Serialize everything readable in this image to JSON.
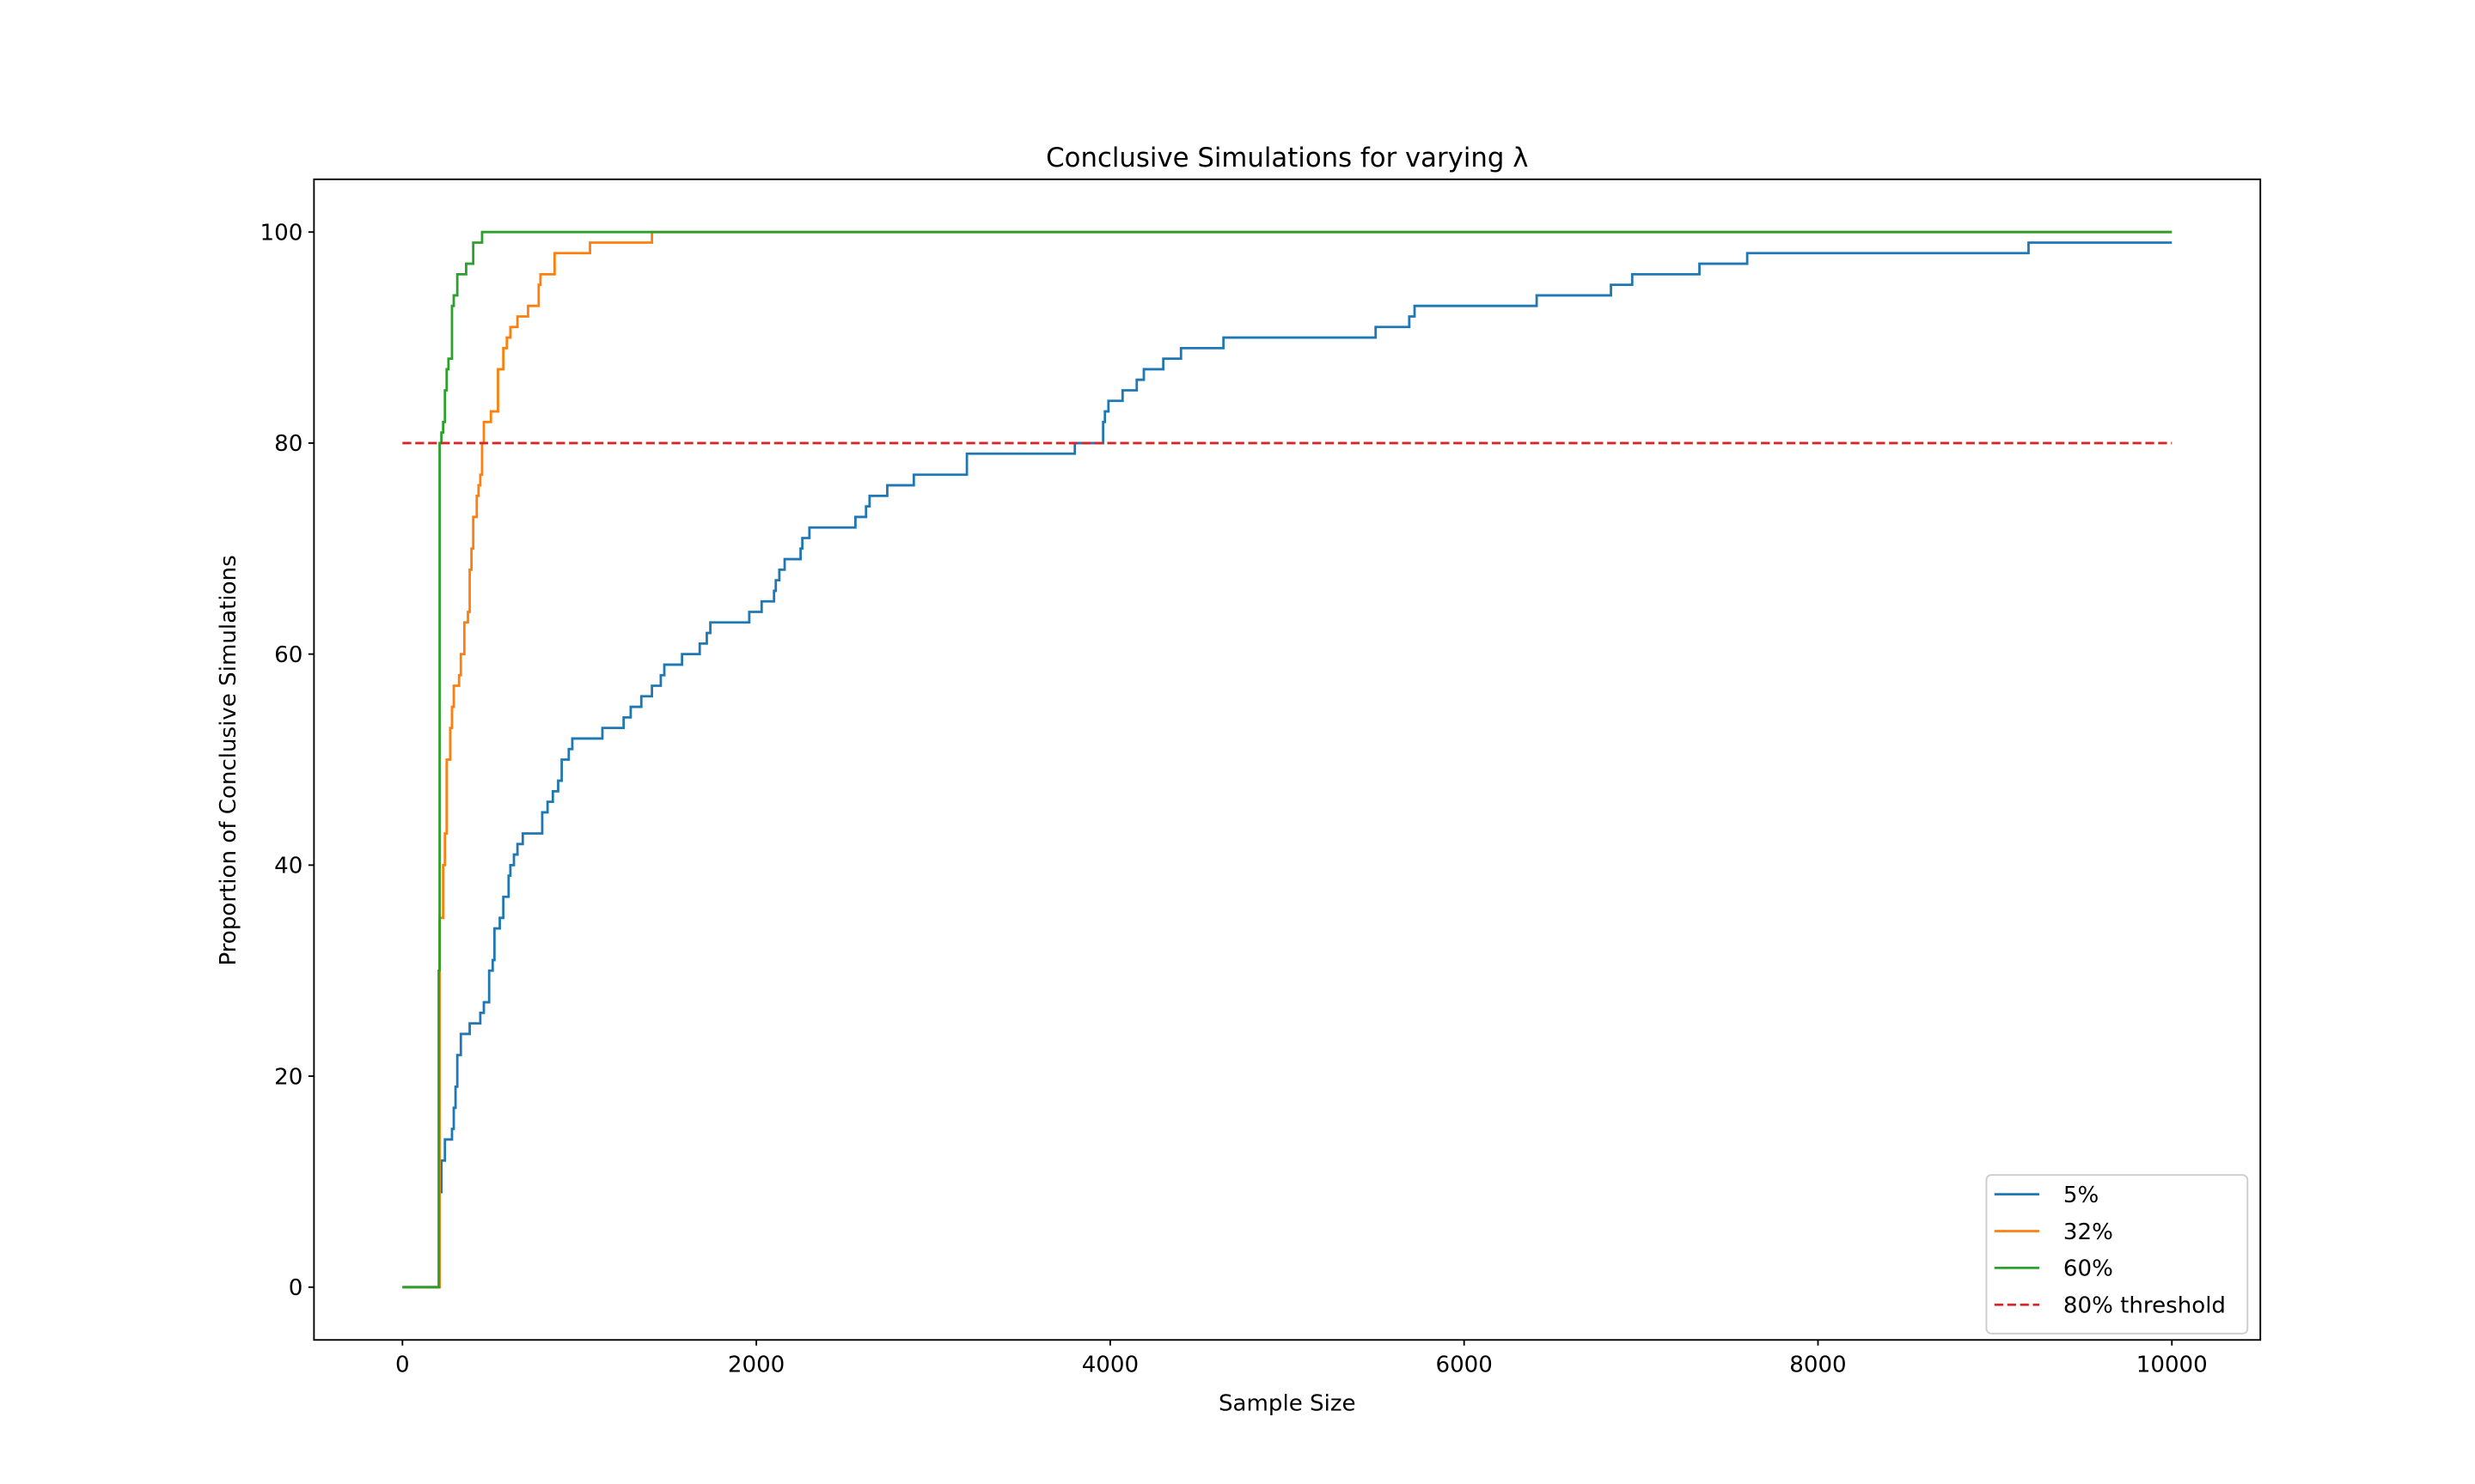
{
  "chart_data": {
    "type": "line",
    "title": "Conclusive Simulations for varying λ",
    "xlabel": "Sample Size",
    "ylabel": "Proportion of Conclusive Simulations",
    "xlim": [
      -500,
      10500
    ],
    "ylim": [
      -5,
      105
    ],
    "xticks": [
      "0",
      "2000",
      "4000",
      "6000",
      "8000",
      "10000"
    ],
    "yticks": [
      "0",
      "20",
      "40",
      "60",
      "80",
      "100"
    ],
    "grid": false,
    "legend_position": "lower right",
    "series": [
      {
        "name": "5%",
        "color": "#1f77b4",
        "style": "step",
        "points": [
          [
            0,
            0
          ],
          [
            200,
            0
          ],
          [
            210,
            9
          ],
          [
            220,
            12
          ],
          [
            240,
            14
          ],
          [
            280,
            15
          ],
          [
            290,
            17
          ],
          [
            300,
            19
          ],
          [
            310,
            22
          ],
          [
            330,
            24
          ],
          [
            380,
            25
          ],
          [
            440,
            26
          ],
          [
            460,
            27
          ],
          [
            490,
            30
          ],
          [
            510,
            31
          ],
          [
            520,
            34
          ],
          [
            550,
            35
          ],
          [
            570,
            37
          ],
          [
            600,
            39
          ],
          [
            610,
            40
          ],
          [
            630,
            41
          ],
          [
            650,
            42
          ],
          [
            680,
            43
          ],
          [
            790,
            45
          ],
          [
            820,
            46
          ],
          [
            850,
            47
          ],
          [
            880,
            48
          ],
          [
            900,
            50
          ],
          [
            940,
            51
          ],
          [
            960,
            52
          ],
          [
            1130,
            53
          ],
          [
            1250,
            54
          ],
          [
            1290,
            55
          ],
          [
            1350,
            56
          ],
          [
            1410,
            57
          ],
          [
            1460,
            58
          ],
          [
            1480,
            59
          ],
          [
            1580,
            60
          ],
          [
            1680,
            61
          ],
          [
            1720,
            62
          ],
          [
            1740,
            63
          ],
          [
            1960,
            64
          ],
          [
            2030,
            65
          ],
          [
            2100,
            66
          ],
          [
            2110,
            67
          ],
          [
            2130,
            68
          ],
          [
            2160,
            69
          ],
          [
            2250,
            70
          ],
          [
            2260,
            71
          ],
          [
            2300,
            72
          ],
          [
            2560,
            73
          ],
          [
            2620,
            74
          ],
          [
            2640,
            75
          ],
          [
            2740,
            76
          ],
          [
            2890,
            77
          ],
          [
            3190,
            79
          ],
          [
            3800,
            80
          ],
          [
            3960,
            82
          ],
          [
            3970,
            83
          ],
          [
            3990,
            84
          ],
          [
            4070,
            85
          ],
          [
            4150,
            86
          ],
          [
            4190,
            87
          ],
          [
            4300,
            88
          ],
          [
            4400,
            89
          ],
          [
            4640,
            90
          ],
          [
            5500,
            91
          ],
          [
            5690,
            92
          ],
          [
            5720,
            93
          ],
          [
            6410,
            94
          ],
          [
            6830,
            95
          ],
          [
            6950,
            96
          ],
          [
            7330,
            97
          ],
          [
            7600,
            98
          ],
          [
            9190,
            99
          ],
          [
            10000,
            99
          ]
        ]
      },
      {
        "name": "32%",
        "color": "#ff7f0e",
        "style": "step",
        "points": [
          [
            0,
            0
          ],
          [
            200,
            0
          ],
          [
            210,
            35
          ],
          [
            230,
            40
          ],
          [
            240,
            43
          ],
          [
            250,
            50
          ],
          [
            270,
            53
          ],
          [
            280,
            55
          ],
          [
            290,
            57
          ],
          [
            320,
            58
          ],
          [
            330,
            60
          ],
          [
            350,
            63
          ],
          [
            370,
            64
          ],
          [
            380,
            68
          ],
          [
            390,
            70
          ],
          [
            400,
            73
          ],
          [
            420,
            75
          ],
          [
            430,
            76
          ],
          [
            440,
            77
          ],
          [
            450,
            80
          ],
          [
            460,
            82
          ],
          [
            500,
            83
          ],
          [
            540,
            87
          ],
          [
            570,
            89
          ],
          [
            590,
            90
          ],
          [
            610,
            91
          ],
          [
            650,
            92
          ],
          [
            710,
            93
          ],
          [
            770,
            95
          ],
          [
            780,
            96
          ],
          [
            860,
            98
          ],
          [
            1060,
            99
          ],
          [
            1410,
            100
          ],
          [
            10000,
            100
          ]
        ]
      },
      {
        "name": "60%",
        "color": "#2ca02c",
        "style": "step",
        "points": [
          [
            0,
            0
          ],
          [
            200,
            0
          ],
          [
            205,
            30
          ],
          [
            210,
            80
          ],
          [
            220,
            81
          ],
          [
            230,
            82
          ],
          [
            240,
            85
          ],
          [
            250,
            87
          ],
          [
            260,
            88
          ],
          [
            280,
            93
          ],
          [
            290,
            94
          ],
          [
            310,
            96
          ],
          [
            360,
            97
          ],
          [
            400,
            99
          ],
          [
            450,
            100
          ],
          [
            10000,
            100
          ]
        ]
      },
      {
        "name": "80% threshold",
        "color": "#d62728",
        "style": "dashed",
        "points": [
          [
            0,
            80
          ],
          [
            10000,
            80
          ]
        ]
      }
    ]
  }
}
